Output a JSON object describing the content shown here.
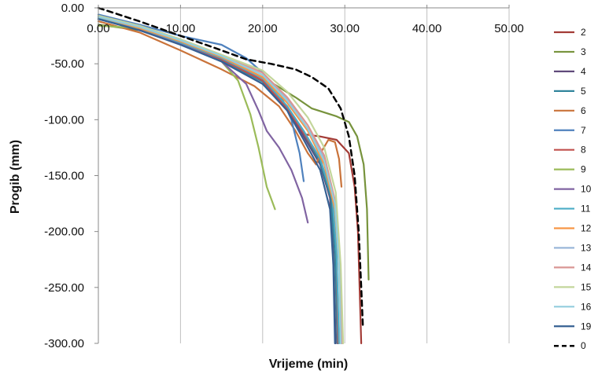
{
  "chart_data": {
    "type": "line",
    "xlabel": "Vrijeme (min)",
    "ylabel": "Progib (mm)",
    "xlim": [
      0,
      50
    ],
    "ylim": [
      -300,
      0
    ],
    "x_ticks": [
      "0.00",
      "10.00",
      "20.00",
      "30.00",
      "40.00",
      "50.00"
    ],
    "y_ticks": [
      "0.00",
      "-50.00",
      "-100.00",
      "-150.00",
      "-200.00",
      "-250.00",
      "-300.00"
    ],
    "x_tick_values": [
      0,
      10,
      20,
      30,
      40,
      50
    ],
    "y_tick_values": [
      0,
      -50,
      -100,
      -150,
      -200,
      -250,
      -300
    ],
    "x_axis_position": "top",
    "grid": "vertical",
    "legend_position": "right",
    "series": [
      {
        "name": "2",
        "color": "#A33B36",
        "dash": false,
        "points": [
          [
            0,
            -10
          ],
          [
            5,
            -18
          ],
          [
            10,
            -30
          ],
          [
            15,
            -45
          ],
          [
            20,
            -65
          ],
          [
            23,
            -90
          ],
          [
            25,
            -113
          ],
          [
            27,
            -115
          ],
          [
            29,
            -118
          ],
          [
            30.5,
            -130
          ],
          [
            31.2,
            -160
          ],
          [
            31.6,
            -200
          ],
          [
            31.8,
            -250
          ],
          [
            32,
            -300
          ]
        ]
      },
      {
        "name": "3",
        "color": "#77933C",
        "dash": false,
        "points": [
          [
            0,
            -15
          ],
          [
            5,
            -20
          ],
          [
            10,
            -30
          ],
          [
            15,
            -45
          ],
          [
            20,
            -62
          ],
          [
            24,
            -80
          ],
          [
            26,
            -90
          ],
          [
            29,
            -97
          ],
          [
            30.5,
            -102
          ],
          [
            31.5,
            -115
          ],
          [
            32.3,
            -140
          ],
          [
            32.7,
            -180
          ],
          [
            32.9,
            -243
          ]
        ]
      },
      {
        "name": "4",
        "color": "#604A7B",
        "dash": false,
        "points": [
          [
            0,
            -10
          ],
          [
            5,
            -18
          ],
          [
            10,
            -32
          ],
          [
            15,
            -48
          ],
          [
            20,
            -68
          ],
          [
            23,
            -90
          ],
          [
            25,
            -115
          ],
          [
            27,
            -140
          ],
          [
            28.2,
            -170
          ],
          [
            28.6,
            -220
          ],
          [
            28.9,
            -300
          ]
        ]
      },
      {
        "name": "5",
        "color": "#31859C",
        "dash": false,
        "points": [
          [
            0,
            -10
          ],
          [
            5,
            -19
          ],
          [
            10,
            -32
          ],
          [
            15,
            -47
          ],
          [
            20,
            -66
          ],
          [
            23,
            -88
          ],
          [
            25,
            -112
          ],
          [
            27,
            -138
          ],
          [
            28.3,
            -170
          ],
          [
            28.8,
            -220
          ],
          [
            29.1,
            -300
          ]
        ]
      },
      {
        "name": "6",
        "color": "#C9733A",
        "dash": false,
        "points": [
          [
            0,
            -12
          ],
          [
            5,
            -22
          ],
          [
            10,
            -38
          ],
          [
            15,
            -55
          ],
          [
            19,
            -70
          ],
          [
            22,
            -88
          ],
          [
            24,
            -110
          ],
          [
            25.5,
            -130
          ],
          [
            26.5,
            -140
          ],
          [
            27.2,
            -128
          ],
          [
            28,
            -118
          ],
          [
            28.8,
            -120
          ],
          [
            29.3,
            -135
          ],
          [
            29.6,
            -160
          ]
        ]
      },
      {
        "name": "7",
        "color": "#4F81BD",
        "dash": false,
        "points": [
          [
            0,
            -6
          ],
          [
            5,
            -15
          ],
          [
            10,
            -25
          ],
          [
            15,
            -33
          ],
          [
            18,
            -45
          ],
          [
            20,
            -58
          ],
          [
            22,
            -75
          ],
          [
            23.5,
            -100
          ],
          [
            24.5,
            -130
          ],
          [
            25,
            -155
          ]
        ]
      },
      {
        "name": "8",
        "color": "#C0504D",
        "dash": false,
        "points": [
          [
            0,
            -10
          ],
          [
            5,
            -19
          ],
          [
            10,
            -32
          ],
          [
            15,
            -46
          ],
          [
            20,
            -65
          ],
          [
            23,
            -90
          ],
          [
            25,
            -112
          ],
          [
            27,
            -135
          ],
          [
            28.5,
            -170
          ],
          [
            29,
            -220
          ],
          [
            29.2,
            -300
          ]
        ]
      },
      {
        "name": "9",
        "color": "#9BBB59",
        "dash": false,
        "points": [
          [
            0,
            -16
          ],
          [
            5,
            -18
          ],
          [
            10,
            -32
          ],
          [
            15,
            -48
          ],
          [
            17,
            -65
          ],
          [
            18.5,
            -95
          ],
          [
            19.5,
            -125
          ],
          [
            20.5,
            -160
          ],
          [
            21.5,
            -180
          ]
        ]
      },
      {
        "name": "10",
        "color": "#8064A2",
        "dash": false,
        "points": [
          [
            0,
            -10
          ],
          [
            5,
            -20
          ],
          [
            10,
            -32
          ],
          [
            15,
            -48
          ],
          [
            18,
            -68
          ],
          [
            19.5,
            -92
          ],
          [
            20.5,
            -110
          ],
          [
            22,
            -125
          ],
          [
            23.5,
            -145
          ],
          [
            24.8,
            -170
          ],
          [
            25.5,
            -192
          ]
        ]
      },
      {
        "name": "11",
        "color": "#4BACC6",
        "dash": false,
        "points": [
          [
            0,
            -9
          ],
          [
            5,
            -18
          ],
          [
            10,
            -31
          ],
          [
            15,
            -45
          ],
          [
            20,
            -63
          ],
          [
            23,
            -88
          ],
          [
            25,
            -110
          ],
          [
            27,
            -135
          ],
          [
            28.5,
            -170
          ],
          [
            29,
            -220
          ],
          [
            29.3,
            -300
          ]
        ]
      },
      {
        "name": "12",
        "color": "#F79646",
        "dash": false,
        "points": [
          [
            0,
            -8
          ],
          [
            5,
            -18
          ],
          [
            10,
            -30
          ],
          [
            15,
            -44
          ],
          [
            20,
            -62
          ],
          [
            23,
            -85
          ],
          [
            25.5,
            -110
          ],
          [
            27.5,
            -140
          ],
          [
            28.8,
            -180
          ],
          [
            29.3,
            -230
          ],
          [
            29.5,
            -300
          ]
        ]
      },
      {
        "name": "13",
        "color": "#95B3D7",
        "dash": false,
        "points": [
          [
            0,
            -8
          ],
          [
            5,
            -17
          ],
          [
            10,
            -29
          ],
          [
            15,
            -43
          ],
          [
            20,
            -60
          ],
          [
            23,
            -82
          ],
          [
            25.5,
            -108
          ],
          [
            27.5,
            -135
          ],
          [
            28.8,
            -175
          ],
          [
            29.4,
            -230
          ],
          [
            29.6,
            -300
          ]
        ]
      },
      {
        "name": "14",
        "color": "#D99694",
        "dash": false,
        "points": [
          [
            0,
            -7
          ],
          [
            5,
            -16
          ],
          [
            10,
            -28
          ],
          [
            15,
            -42
          ],
          [
            20,
            -58
          ],
          [
            23,
            -80
          ],
          [
            25.5,
            -105
          ],
          [
            27.5,
            -132
          ],
          [
            28.8,
            -172
          ],
          [
            29.4,
            -230
          ],
          [
            29.7,
            -300
          ]
        ]
      },
      {
        "name": "15",
        "color": "#C3D69B",
        "dash": false,
        "points": [
          [
            0,
            -7
          ],
          [
            5,
            -16
          ],
          [
            10,
            -28
          ],
          [
            15,
            -42
          ],
          [
            20,
            -56
          ],
          [
            23,
            -75
          ],
          [
            25.5,
            -98
          ],
          [
            27.5,
            -125
          ],
          [
            28.9,
            -165
          ],
          [
            29.5,
            -230
          ],
          [
            29.8,
            -300
          ]
        ]
      },
      {
        "name": "16",
        "color": "#93CDDD",
        "dash": false,
        "points": [
          [
            0,
            -8
          ],
          [
            5,
            -17
          ],
          [
            10,
            -29
          ],
          [
            15,
            -43
          ],
          [
            20,
            -60
          ],
          [
            23,
            -83
          ],
          [
            25.5,
            -108
          ],
          [
            27.5,
            -137
          ],
          [
            28.8,
            -175
          ],
          [
            29.3,
            -230
          ],
          [
            29.5,
            -300
          ]
        ]
      },
      {
        "name": "19",
        "color": "#366092",
        "dash": false,
        "points": [
          [
            0,
            -10
          ],
          [
            5,
            -20
          ],
          [
            10,
            -33
          ],
          [
            15,
            -48
          ],
          [
            20,
            -68
          ],
          [
            23,
            -92
          ],
          [
            25,
            -118
          ],
          [
            27,
            -145
          ],
          [
            28.2,
            -180
          ],
          [
            28.6,
            -230
          ],
          [
            28.8,
            -300
          ]
        ]
      },
      {
        "name": "0",
        "color": "#000000",
        "dash": true,
        "points": [
          [
            0,
            0
          ],
          [
            5,
            -12
          ],
          [
            10,
            -25
          ],
          [
            15,
            -38
          ],
          [
            18,
            -46
          ],
          [
            21,
            -50
          ],
          [
            24,
            -55
          ],
          [
            26,
            -62
          ],
          [
            28,
            -72
          ],
          [
            29.5,
            -90
          ],
          [
            30.5,
            -115
          ],
          [
            31.2,
            -150
          ],
          [
            31.7,
            -200
          ],
          [
            32,
            -250
          ],
          [
            32.2,
            -285
          ]
        ]
      }
    ]
  }
}
